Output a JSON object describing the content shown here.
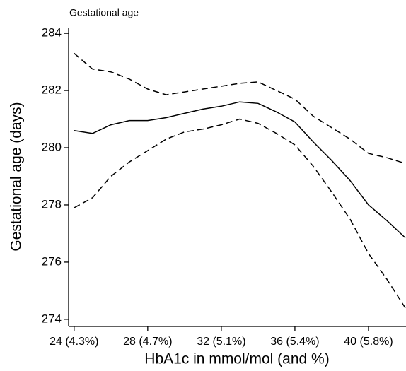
{
  "chart_data": {
    "type": "line",
    "title": "Gestational age",
    "x_label": "HbA1c in mmol/mol (and %)",
    "y_label": "Gestational age (days)",
    "x": [
      24,
      25,
      26,
      27,
      28,
      29,
      30,
      31,
      32,
      33,
      34,
      35,
      36,
      37,
      38,
      39,
      40,
      41,
      42
    ],
    "series": [
      {
        "color": "#000000",
        "dash": false,
        "values": [
          280.6,
          280.5,
          280.8,
          280.95,
          280.95,
          281.05,
          281.2,
          281.35,
          281.45,
          281.6,
          281.55,
          281.25,
          280.9,
          280.2,
          279.55,
          278.85,
          278.0,
          277.45,
          276.85
        ]
      },
      {
        "color": "#000000",
        "dash": true,
        "values": [
          283.3,
          282.75,
          282.65,
          282.4,
          282.05,
          281.85,
          281.95,
          282.05,
          282.15,
          282.25,
          282.3,
          282.0,
          281.7,
          281.1,
          280.7,
          280.3,
          279.8,
          279.65,
          279.45
        ]
      },
      {
        "color": "#000000",
        "dash": true,
        "values": [
          277.9,
          278.25,
          279.0,
          279.5,
          279.9,
          280.3,
          280.55,
          280.65,
          280.8,
          281.0,
          280.85,
          280.5,
          280.1,
          279.35,
          278.45,
          277.5,
          276.3,
          275.4,
          274.4
        ]
      }
    ],
    "xlim": [
      23.7,
      42
    ],
    "ylim": [
      273.75,
      284.2
    ],
    "xticks": [
      {
        "value": 24,
        "label": "24 (4.3%)"
      },
      {
        "value": 28,
        "label": "28 (4.7%)"
      },
      {
        "value": 32,
        "label": "32 (5.1%)"
      },
      {
        "value": 36,
        "label": "36 (5.4%)"
      },
      {
        "value": 40,
        "label": "40 (5.8%)"
      }
    ],
    "yticks": [
      274,
      276,
      278,
      280,
      282,
      284
    ],
    "grid": false
  }
}
